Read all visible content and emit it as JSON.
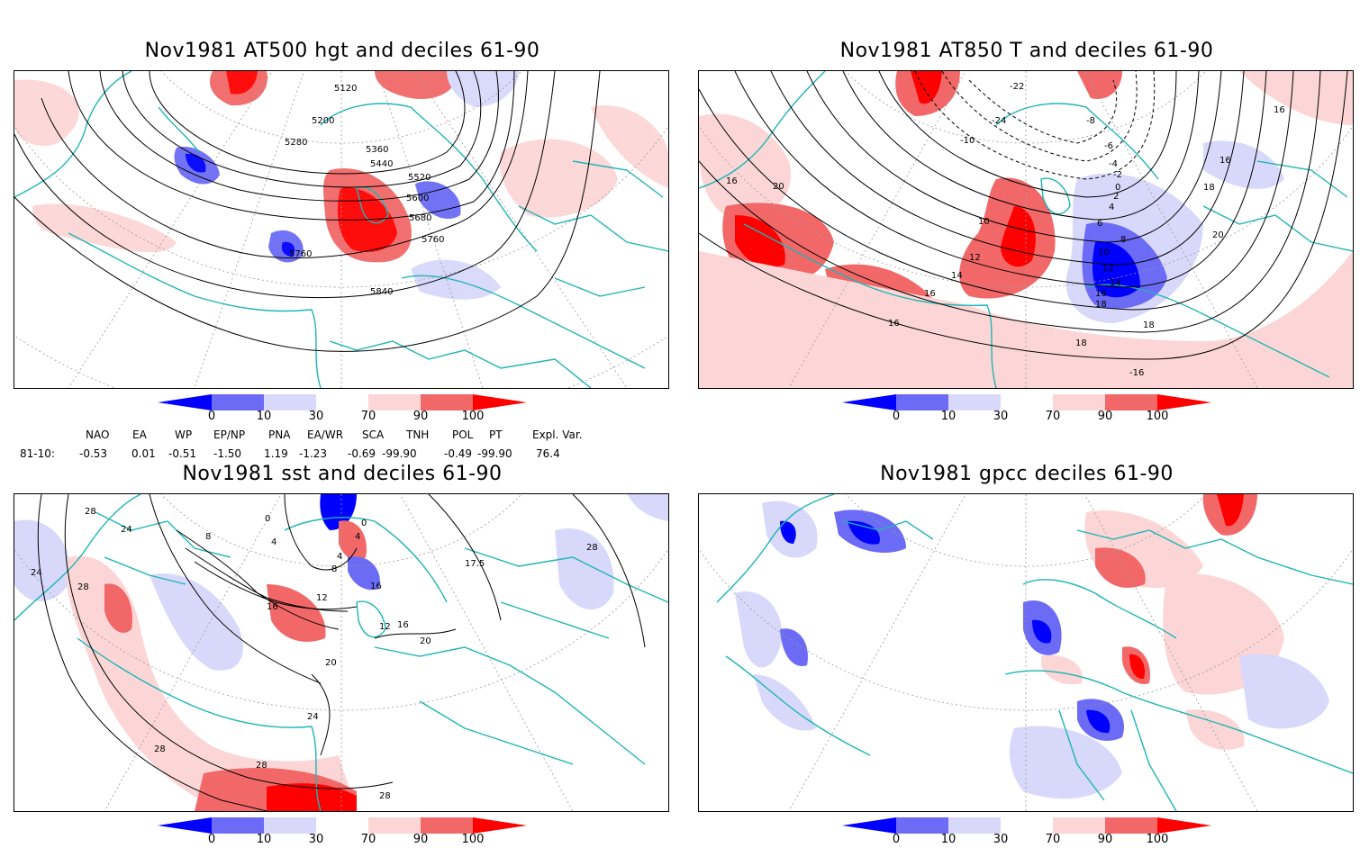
{
  "panels": [
    {
      "id": "hgt",
      "title": "Nov1981 AT500 hgt and deciles 61-90",
      "contour_labels": [
        "5120",
        "5200",
        "5280",
        "5360",
        "5440",
        "5520",
        "5600",
        "5680",
        "5760",
        "5760",
        "5840"
      ]
    },
    {
      "id": "t850",
      "title": "Nov1981 AT850 T and deciles 61-90",
      "contour_labels": [
        "-22",
        "-24",
        "-10",
        "-8",
        "-6",
        "-4",
        "-2",
        "0",
        "2",
        "4",
        "6",
        "8",
        "10",
        "12",
        "14",
        "16",
        "18",
        "16",
        "18",
        "16",
        "20",
        "16",
        "16",
        "18",
        "10",
        "12",
        "14",
        "16",
        "18",
        "20",
        "-16"
      ]
    },
    {
      "id": "sst",
      "title": "Nov1981 sst and deciles 61-90",
      "contour_labels": [
        "28",
        "24",
        "24",
        "28",
        "8",
        "0",
        "4",
        "12",
        "16",
        "12",
        "16",
        "20",
        "20",
        "24",
        "28",
        "28",
        "28",
        "17.5",
        "28",
        "0",
        "4",
        "4",
        "8",
        "16"
      ]
    },
    {
      "id": "gpcc",
      "title": "Nov1981 gpcc deciles 61-90",
      "contour_labels": []
    }
  ],
  "colorbar": {
    "labels": [
      "0",
      "10",
      "30",
      "70",
      "90",
      "100"
    ],
    "colors": [
      "#0000ff",
      "#6b6bf5",
      "#d8d8fb",
      "#ffffff",
      "#fcd6d6",
      "#f26868",
      "#ff0000"
    ]
  },
  "indices": {
    "headers": [
      "NAO",
      "EA",
      "WP",
      "EP/NP",
      "PNA",
      "EA/WR",
      "SCA",
      "TNH",
      "POL",
      "PT",
      "Expl. Var."
    ],
    "row_label": "81-10:",
    "values": [
      "-0.53",
      "0.01",
      "-0.51",
      "-1.50",
      "1.19",
      "-1.23",
      "-0.69",
      "-99.90",
      "-0.49",
      "-99.90",
      "76.4"
    ]
  },
  "colors": {
    "coast": "#1fb5b5",
    "contour": "#000000",
    "grid": "#999999"
  }
}
